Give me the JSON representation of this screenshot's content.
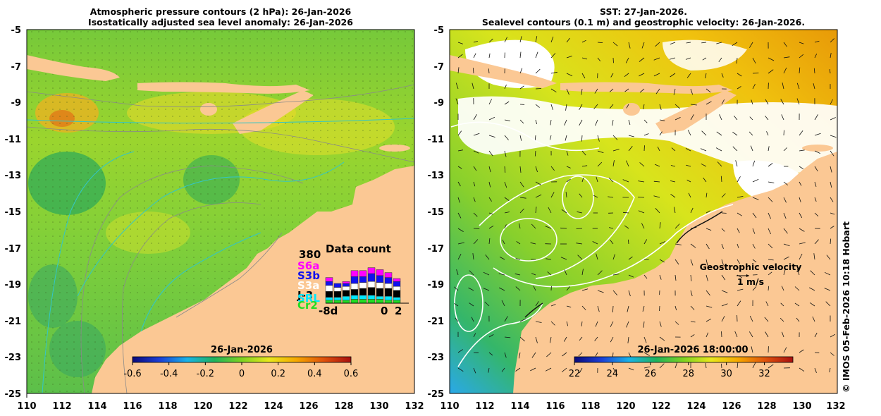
{
  "left_panel": {
    "title_line1": "Atmospheric pressure contours (2 hPa): 26-Jan-2026",
    "title_line2": "Isostatically adjusted sea level anomaly: 26-Jan-2026",
    "x_ticks": [
      "110",
      "112",
      "114",
      "116",
      "118",
      "120",
      "122",
      "124",
      "126",
      "128",
      "130",
      "132"
    ],
    "y_ticks": [
      "-5",
      "-7",
      "-9",
      "-11",
      "-13",
      "-15",
      "-17",
      "-19",
      "-21",
      "-23",
      "-25"
    ],
    "colorbar": {
      "date": "26-Jan-2026",
      "labels": [
        "-0.6",
        "-0.4",
        "-0.2",
        "0",
        "0.2",
        "0.4",
        "0.6"
      ],
      "min": -0.6,
      "max": 0.6,
      "colors": [
        "#0a0a7a",
        "#1b3fd6",
        "#19b3e8",
        "#1fb35c",
        "#7ed321",
        "#e8e81c",
        "#f6a800",
        "#e0520c",
        "#a80f0f"
      ]
    },
    "data_count": {
      "title": "Data count",
      "max_label": "380",
      "satellites": [
        {
          "name": "S6a",
          "color": "#ff00ff"
        },
        {
          "name": "S3b",
          "color": "#1010ee"
        },
        {
          "name": "S3a",
          "color": "#ffffff"
        },
        {
          "name": "J-3",
          "color": "#000000"
        },
        {
          "name": "SRL",
          "color": "#00e8ff"
        },
        {
          "name": "Cr2",
          "color": "#22dd22"
        }
      ],
      "x_labels": [
        "-8d",
        "0",
        "2"
      ]
    }
  },
  "right_panel": {
    "title_line1": "SST: 27-Jan-2026.",
    "title_line2": "Sealevel contours (0.1 m) and geostrophic velocity: 26-Jan-2026.",
    "x_ticks": [
      "110",
      "112",
      "114",
      "116",
      "118",
      "120",
      "122",
      "124",
      "126",
      "128",
      "130",
      "132"
    ],
    "y_ticks": [
      "-5",
      "-7",
      "-9",
      "-11",
      "-13",
      "-15",
      "-17",
      "-19",
      "-21",
      "-23",
      "-25"
    ],
    "velocity_legend_title": "Geostrophic velocity",
    "velocity_legend_scale": "1 m/s",
    "colorbar": {
      "date": "26-Jan-2026 18:00:00",
      "labels": [
        "22",
        "24",
        "26",
        "28",
        "30",
        "32"
      ],
      "min": 22,
      "max": 33.5,
      "colors": [
        "#0a0a7a",
        "#1b3fd6",
        "#19b3e8",
        "#1fb35c",
        "#7ed321",
        "#e8e81c",
        "#f6a800",
        "#e0520c",
        "#a80f0f"
      ]
    }
  },
  "credit": "© IMOS 05-Feb-2026 10:18 Hobart",
  "colors": {
    "land": "#fbc894",
    "ocean_left": "#8fd635",
    "ocean_right": "#c4e21f",
    "cloud": "#ffffff",
    "contour": "#8a8a8a",
    "pressure": "#33c6c6"
  }
}
